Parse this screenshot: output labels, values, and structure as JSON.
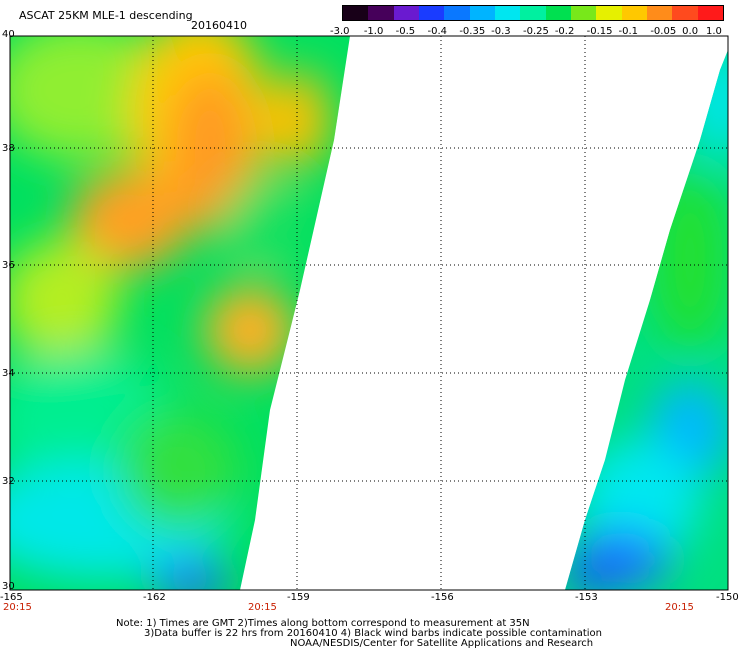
{
  "title": "ASCAT 25KM MLE-1 descending",
  "date": "20160410",
  "colorbar": {
    "labels": [
      "-3.0",
      "-1.0",
      "-0.5",
      "-0.4",
      "-0.35",
      "-0.3",
      "-0.25",
      "-0.2",
      "-0.15",
      "-0.1",
      "-0.05",
      "0.0",
      "1.0"
    ],
    "colors": [
      "#180018",
      "#46005a",
      "#6a1ad0",
      "#1a3cff",
      "#0a78ff",
      "#00b4ff",
      "#00e6f0",
      "#00f0a0",
      "#00e050",
      "#78e81a",
      "#e6f000",
      "#ffc800",
      "#ff8c1a",
      "#ff4a1e",
      "#ff1a1a"
    ]
  },
  "axes": {
    "lat_labels": [
      "40",
      "38",
      "36",
      "34",
      "32",
      "30"
    ],
    "lon_labels": [
      "-165",
      "-162",
      "-159",
      "-156",
      "-153",
      "-150"
    ],
    "time_labels": [
      "20:15",
      "20:15",
      "20:15"
    ]
  },
  "notes": {
    "line1": "Note: 1) Times are GMT 2)Times along bottom correspond to measurement at 35N",
    "line2": "3)Data buffer is 22 hrs from 20160410 4) Black wind barbs indicate possible contamination",
    "line3": "NOAA/NESDIS/Center for Satellite Applications and Research"
  }
}
